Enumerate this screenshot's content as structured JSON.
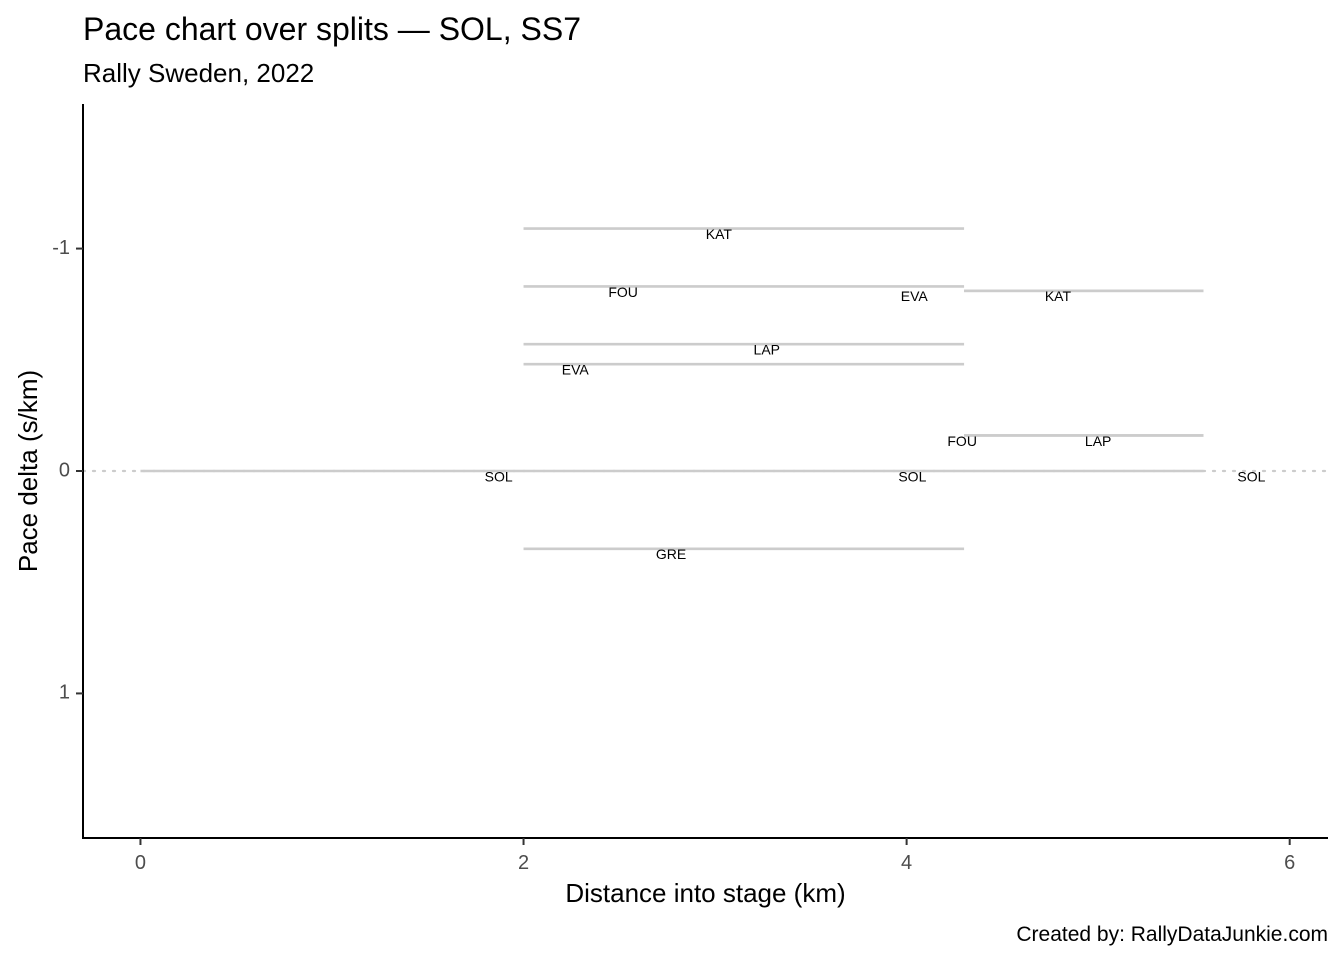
{
  "chart_data": {
    "type": "line",
    "title": "Pace chart over splits — SOL, SS7",
    "subtitle": "Rally Sweden, 2022",
    "xlabel": "Distance into stage (km)",
    "ylabel": "Pace delta (s/km)",
    "caption": "Created by: RallyDataJunkie.com",
    "xlim": [
      -0.3,
      6.2
    ],
    "ylim": [
      1.65,
      -1.65
    ],
    "y_reversed": true,
    "x_ticks": [
      0,
      2,
      4,
      6
    ],
    "x_tick_labels": [
      "0",
      "2",
      "4",
      "6"
    ],
    "y_ticks": [
      -1,
      0,
      1
    ],
    "y_tick_labels": [
      "-1",
      "0",
      "1"
    ],
    "grid": false,
    "legend": "none",
    "series_color": "#cccccc",
    "reference_line": {
      "y": 0,
      "style": "dotted",
      "color": "#cccccc"
    },
    "segments": [
      {
        "driver": "SOL",
        "x_start": 0.0,
        "x_end": 2.0,
        "pace_delta": 0.0
      },
      {
        "driver": "KAT",
        "x_start": 2.0,
        "x_end": 4.3,
        "pace_delta": -1.09
      },
      {
        "driver": "FOU",
        "x_start": 2.0,
        "x_end": 4.3,
        "pace_delta": -0.83
      },
      {
        "driver": "LAP",
        "x_start": 2.0,
        "x_end": 4.3,
        "pace_delta": -0.57
      },
      {
        "driver": "EVA",
        "x_start": 2.0,
        "x_end": 4.3,
        "pace_delta": -0.48
      },
      {
        "driver": "SOL",
        "x_start": 2.0,
        "x_end": 4.3,
        "pace_delta": 0.0
      },
      {
        "driver": "GRE",
        "x_start": 2.0,
        "x_end": 4.3,
        "pace_delta": 0.35
      },
      {
        "driver": "EVA",
        "x_start": 4.3,
        "x_end": 5.55,
        "pace_delta": -0.81
      },
      {
        "driver": "KAT",
        "x_start": 4.3,
        "x_end": 5.55,
        "pace_delta": -0.81
      },
      {
        "driver": "FOU",
        "x_start": 4.3,
        "x_end": 5.55,
        "pace_delta": -0.16
      },
      {
        "driver": "LAP",
        "x_start": 4.3,
        "x_end": 5.55,
        "pace_delta": -0.16
      },
      {
        "driver": "SOL",
        "x_start": 4.3,
        "x_end": 5.55,
        "pace_delta": 0.0
      }
    ],
    "labels": [
      {
        "text": "SOL",
        "x": 1.87,
        "y": 0.03
      },
      {
        "text": "KAT",
        "x": 3.02,
        "y": -1.06
      },
      {
        "text": "FOU",
        "x": 2.52,
        "y": -0.8
      },
      {
        "text": "LAP",
        "x": 3.27,
        "y": -0.54
      },
      {
        "text": "EVA",
        "x": 2.27,
        "y": -0.45
      },
      {
        "text": "GRE",
        "x": 2.77,
        "y": 0.38
      },
      {
        "text": "EVA",
        "x": 4.04,
        "y": -0.78
      },
      {
        "text": "SOL",
        "x": 4.03,
        "y": 0.03
      },
      {
        "text": "KAT",
        "x": 4.79,
        "y": -0.78
      },
      {
        "text": "FOU",
        "x": 4.29,
        "y": -0.13
      },
      {
        "text": "LAP",
        "x": 5.0,
        "y": -0.13
      },
      {
        "text": "SOL",
        "x": 5.8,
        "y": 0.03
      }
    ]
  }
}
